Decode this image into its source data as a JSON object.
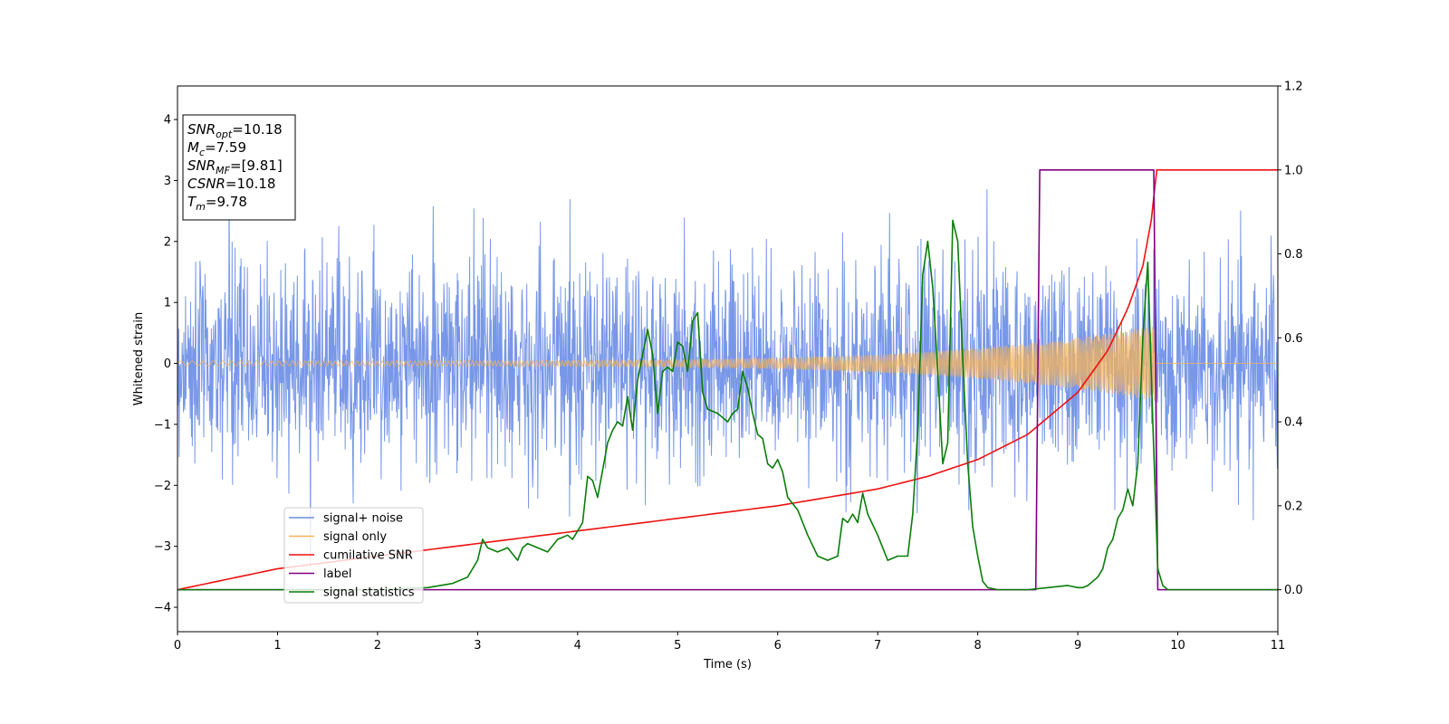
{
  "chart_data": {
    "type": "line",
    "xlabel": "Time (s)",
    "ylabel": "Whitened strain",
    "xlim": [
      0,
      11
    ],
    "ylim_left": [
      -4.4,
      4.55
    ],
    "ylim_right": [
      -0.1,
      1.2
    ],
    "x_ticks": [
      0,
      1,
      2,
      3,
      4,
      5,
      6,
      7,
      8,
      9,
      10,
      11
    ],
    "y_ticks_left": [
      -4,
      -3,
      -2,
      -1,
      0,
      1,
      2,
      3,
      4
    ],
    "y_ticks_right": [
      0.0,
      0.2,
      0.4,
      0.6,
      0.8,
      1.0,
      1.2
    ],
    "grid": false,
    "legend_position": "lower-left",
    "info_box": [
      {
        "var": "SNR",
        "sub": "opt",
        "text": "=10.18"
      },
      {
        "var": "M",
        "sub": "c",
        "text": "=7.59"
      },
      {
        "var": "SNR",
        "sub": "MF",
        "text": "=[9.81]"
      },
      {
        "var": "CSNR",
        "sub": "",
        "text": "=10.18"
      },
      {
        "var": "T",
        "sub": "m",
        "text": "=9.78"
      }
    ],
    "series": [
      {
        "name": "signal+ noise",
        "color": "#6d8ee6",
        "axis": "left",
        "kind": "noise",
        "std": 0.85,
        "peak_min": -3.95,
        "peak_max": 3.9
      },
      {
        "name": "signal only",
        "color": "#f5b35a",
        "axis": "left",
        "kind": "chirp",
        "start_amp": 0.04,
        "end_amp": 0.62,
        "merger_time": 9.78
      },
      {
        "name": "cumilative SNR",
        "color": "#ee1111",
        "axis": "right",
        "x": [
          0,
          1,
          2,
          3,
          4,
          5,
          6,
          7,
          7.5,
          8,
          8.5,
          9,
          9.3,
          9.5,
          9.65,
          9.75,
          9.78,
          11
        ],
        "y": [
          0.0,
          0.05,
          0.08,
          0.11,
          0.14,
          0.17,
          0.2,
          0.24,
          0.27,
          0.31,
          0.37,
          0.47,
          0.57,
          0.67,
          0.77,
          0.9,
          1.0,
          1.0
        ]
      },
      {
        "name": "label",
        "color": "#800080",
        "axis": "right",
        "x": [
          0,
          8.58,
          8.62,
          9.76,
          9.8,
          11
        ],
        "y": [
          0,
          0,
          1,
          1,
          0,
          0
        ]
      },
      {
        "name": "signal statistics",
        "color": "#0a7d0a",
        "axis": "right",
        "x": [
          0,
          1,
          2,
          2.5,
          2.75,
          2.9,
          3.0,
          3.05,
          3.1,
          3.2,
          3.3,
          3.4,
          3.45,
          3.5,
          3.6,
          3.7,
          3.8,
          3.9,
          3.95,
          4.0,
          4.05,
          4.1,
          4.15,
          4.2,
          4.3,
          4.35,
          4.4,
          4.45,
          4.5,
          4.55,
          4.6,
          4.65,
          4.7,
          4.75,
          4.8,
          4.85,
          4.9,
          4.95,
          5.0,
          5.05,
          5.1,
          5.15,
          5.2,
          5.25,
          5.3,
          5.4,
          5.5,
          5.55,
          5.6,
          5.65,
          5.7,
          5.75,
          5.8,
          5.85,
          5.9,
          5.95,
          6.0,
          6.05,
          6.1,
          6.2,
          6.3,
          6.4,
          6.5,
          6.6,
          6.65,
          6.7,
          6.75,
          6.8,
          6.85,
          6.9,
          7.0,
          7.1,
          7.2,
          7.3,
          7.35,
          7.4,
          7.45,
          7.5,
          7.55,
          7.6,
          7.65,
          7.7,
          7.75,
          7.8,
          7.85,
          7.9,
          7.95,
          8.0,
          8.05,
          8.1,
          8.2,
          8.5,
          8.7,
          8.9,
          9.0,
          9.05,
          9.1,
          9.15,
          9.2,
          9.25,
          9.3,
          9.35,
          9.4,
          9.45,
          9.5,
          9.55,
          9.6,
          9.65,
          9.7,
          9.75,
          9.8,
          9.85,
          9.9,
          10.0,
          11.0
        ],
        "y": [
          0.0,
          0.0,
          0.0,
          0.005,
          0.015,
          0.03,
          0.07,
          0.12,
          0.1,
          0.09,
          0.1,
          0.07,
          0.1,
          0.11,
          0.1,
          0.09,
          0.12,
          0.13,
          0.12,
          0.14,
          0.16,
          0.27,
          0.26,
          0.22,
          0.35,
          0.38,
          0.4,
          0.39,
          0.46,
          0.38,
          0.5,
          0.56,
          0.62,
          0.56,
          0.42,
          0.52,
          0.53,
          0.52,
          0.59,
          0.58,
          0.52,
          0.64,
          0.66,
          0.47,
          0.43,
          0.42,
          0.4,
          0.42,
          0.43,
          0.52,
          0.48,
          0.42,
          0.37,
          0.36,
          0.3,
          0.29,
          0.31,
          0.28,
          0.22,
          0.19,
          0.13,
          0.08,
          0.07,
          0.08,
          0.17,
          0.16,
          0.18,
          0.16,
          0.23,
          0.18,
          0.13,
          0.07,
          0.08,
          0.08,
          0.18,
          0.38,
          0.75,
          0.83,
          0.72,
          0.52,
          0.3,
          0.35,
          0.88,
          0.83,
          0.55,
          0.3,
          0.15,
          0.08,
          0.02,
          0.005,
          0.0,
          0.0,
          0.005,
          0.01,
          0.005,
          0.005,
          0.01,
          0.02,
          0.03,
          0.05,
          0.1,
          0.12,
          0.17,
          0.19,
          0.24,
          0.2,
          0.3,
          0.6,
          0.78,
          0.4,
          0.05,
          0.01,
          0.0,
          0.0,
          0.0
        ]
      }
    ]
  }
}
